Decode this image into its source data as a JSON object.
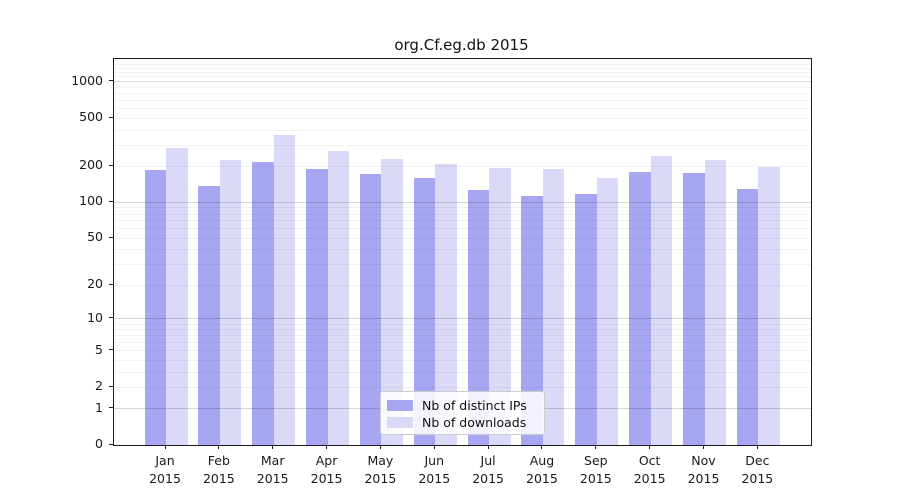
{
  "title": "org.Cf.eg.db 2015",
  "chart_data": {
    "type": "bar",
    "categories": [
      "Jan",
      "Feb",
      "Mar",
      "Apr",
      "May",
      "Jun",
      "Jul",
      "Aug",
      "Sep",
      "Oct",
      "Nov",
      "Dec"
    ],
    "year": "2015",
    "series": [
      {
        "name": "Nb of distinct IPs",
        "color": "#a7a7f1",
        "values": [
          185,
          138,
          218,
          190,
          174,
          161,
          128,
          113,
          118,
          180,
          177,
          130
        ]
      },
      {
        "name": "Nb of downloads",
        "color": "#dadaf8",
        "values": [
          285,
          225,
          365,
          268,
          230,
          210,
          195,
          190,
          160,
          245,
          224,
          196
        ]
      }
    ],
    "title": "org.Cf.eg.db 2015",
    "xlabel": "",
    "ylabel": "",
    "yticks": [
      0,
      1,
      2,
      5,
      10,
      20,
      50,
      100,
      200,
      500,
      1000
    ],
    "ylim": [
      0,
      1550
    ],
    "yscale": "log1p",
    "grid": "on",
    "legend_position": "lower-center"
  }
}
